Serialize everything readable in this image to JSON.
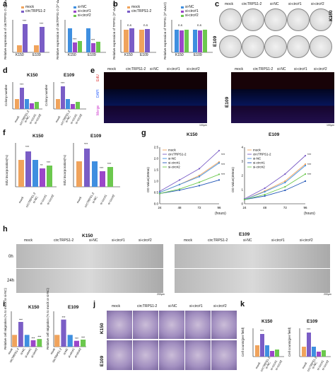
{
  "panels": {
    "a": "a",
    "b": "b",
    "c": "c",
    "d": "d",
    "e": "e",
    "f": "f",
    "g": "g",
    "h": "h",
    "i": "i",
    "j": "j",
    "k": "k"
  },
  "groups": [
    "mock",
    "circTRPS1-2",
    "si-NC",
    "si-circ#1",
    "si-circ#2"
  ],
  "cells": {
    "k150": "K150",
    "e109": "E109"
  },
  "a": {
    "y1": "Relative expression of circTRPS1-2 (2^-ΔΔCt)",
    "y2": "Relative expression of circTRPS1-2 (2^-ΔΔCt)",
    "legend1": [
      "mock",
      "circTRPS1-2"
    ],
    "legend2": [
      "si-NC",
      "si-circ#1",
      "si-circ#2"
    ]
  },
  "b": {
    "y1": "Relative expression of TRPS1 (2^-ΔΔCt)",
    "y2": "Relative expression of TRPS1 (2^-ΔΔCt)",
    "legend1": [
      "mock",
      "circTRPS1-2"
    ],
    "legend2": [
      "si-NC",
      "si-circ#1",
      "si-circ#2"
    ],
    "ns": "n.s"
  },
  "d": {
    "y": "Colony number"
  },
  "e": {
    "rows": [
      "EdU",
      "DAPI",
      "Merge"
    ],
    "scale": "100μm"
  },
  "f": {
    "y": "EdU incorporation(%)"
  },
  "g": {
    "y": "OD Value(450nm)",
    "xunit": "(hours)"
  },
  "h": {
    "rows": [
      "0h",
      "24h"
    ],
    "scale": "200μm"
  },
  "i": {
    "y": "Relative cell migration (% to mock or si-NC)"
  },
  "k": {
    "y": "Cell counts(per field)"
  },
  "sig": {
    "s3": "***",
    "s2": "**",
    "s1": "*"
  },
  "colors": {
    "mock": "#f0a35c",
    "circ": "#7a5dc6",
    "sinc": "#3f8fe0",
    "si1": "#9b46c9",
    "si2": "#6cc84e",
    "blue": "#2357b8"
  },
  "chart_data": [
    {
      "type": "line",
      "title": "K150",
      "ylabel": "OD Value(450nm)",
      "xlabel": "(hours)",
      "x": [
        24,
        48,
        72,
        96
      ],
      "xlim": [
        24,
        96
      ],
      "ylim": [
        0,
        2.5
      ],
      "yticks": [
        0.0,
        0.5,
        1.0,
        1.5,
        2.0,
        2.5
      ],
      "series": [
        {
          "name": "mock",
          "values": [
            0.5,
            0.85,
            1.25,
            1.85
          ]
        },
        {
          "name": "circTRPS1-2",
          "values": [
            0.55,
            1.05,
            1.55,
            2.35
          ]
        },
        {
          "name": "si-NC",
          "values": [
            0.5,
            0.85,
            1.2,
            1.8
          ]
        },
        {
          "name": "si-circ#1",
          "values": [
            0.45,
            0.6,
            0.8,
            1.05
          ]
        },
        {
          "name": "si-circ#2",
          "values": [
            0.45,
            0.65,
            0.95,
            1.3
          ]
        }
      ]
    },
    {
      "type": "line",
      "title": "E109",
      "ylabel": "OD Value(450nm)",
      "xlabel": "(hours)",
      "x": [
        24,
        48,
        72,
        96
      ],
      "xlim": [
        24,
        96
      ],
      "ylim": [
        0,
        4
      ],
      "yticks": [
        0,
        1,
        2,
        3,
        4
      ],
      "series": [
        {
          "name": "mock",
          "values": [
            0.3,
            0.9,
            1.6,
            2.8
          ]
        },
        {
          "name": "circTRPS1-2",
          "values": [
            0.35,
            1.1,
            2.1,
            3.4
          ]
        },
        {
          "name": "si-NC",
          "values": [
            0.3,
            0.85,
            1.5,
            2.7
          ]
        },
        {
          "name": "si-circ#1",
          "values": [
            0.3,
            0.55,
            0.95,
            1.6
          ]
        },
        {
          "name": "si-circ#2",
          "values": [
            0.3,
            0.65,
            1.2,
            2.1
          ]
        }
      ]
    },
    {
      "type": "bar",
      "title": "K150",
      "ylabel": "Relative cell migration (% to mock or si-NC)",
      "categories": [
        "mock",
        "circTRPS1-2",
        "si-NC",
        "si-circ#1",
        "si-circ#2"
      ],
      "ylim": [
        0,
        300
      ],
      "values": [
        100,
        210,
        100,
        55,
        65
      ]
    },
    {
      "type": "bar",
      "title": "E109",
      "ylabel": "Relative cell migration (% to mock or si-NC)",
      "categories": [
        "mock",
        "circTRPS1-2",
        "si-NC",
        "si-circ#1",
        "si-circ#2"
      ],
      "ylim": [
        0,
        300
      ],
      "values": [
        100,
        230,
        100,
        50,
        60
      ]
    }
  ]
}
